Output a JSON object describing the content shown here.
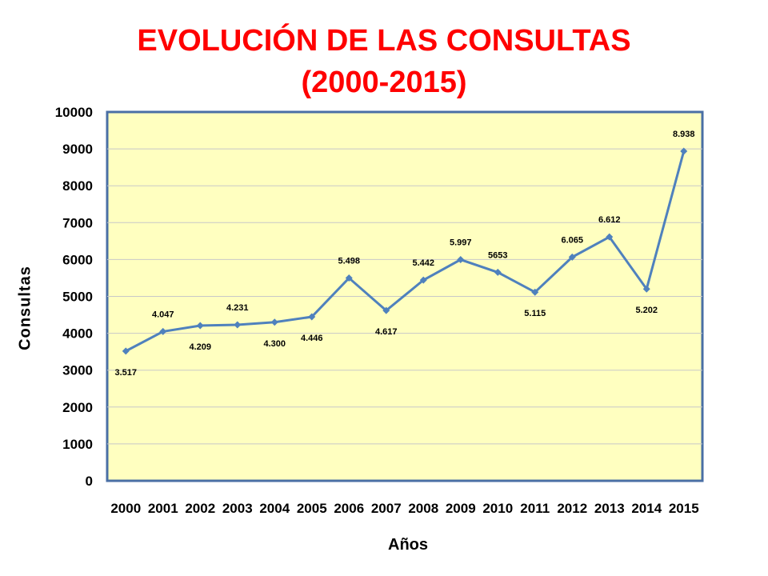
{
  "chart_data": {
    "type": "line",
    "title": "EVOLUCIÓN DE LAS CONSULTAS",
    "subtitle": "(2000-2015)",
    "xlabel": "Años",
    "ylabel": "Consultas",
    "ylim": [
      0,
      10000
    ],
    "y_ticks": [
      "0",
      "1000",
      "2000",
      "3000",
      "4000",
      "5000",
      "6000",
      "7000",
      "8000",
      "9000",
      "10000"
    ],
    "categories": [
      "2000",
      "2001",
      "2002",
      "2003",
      "2004",
      "2005",
      "2006",
      "2007",
      "2008",
      "2009",
      "2010",
      "2011",
      "2012",
      "2013",
      "2014",
      "2015"
    ],
    "series": [
      {
        "values": [
          3517,
          4047,
          4209,
          4231,
          4300,
          4446,
          5498,
          4617,
          5442,
          5997,
          5653,
          5115,
          6065,
          6612,
          5202,
          8938
        ],
        "labels": [
          "3.517",
          "4.047",
          "4.209",
          "4.231",
          "4.300",
          "4.446",
          "5.498",
          "4.617",
          "5.442",
          "5.997",
          "5653",
          "5.115",
          "6.065",
          "6.612",
          "5.202",
          "8.938"
        ],
        "label_positions": [
          "below",
          "above",
          "below",
          "above",
          "below",
          "below",
          "above",
          "below",
          "above",
          "above",
          "above",
          "below",
          "above",
          "above",
          "below",
          "above"
        ]
      }
    ],
    "grid": true,
    "colors": {
      "plot_background": "#ffffc0",
      "plot_border": "#4a6fa5",
      "line": "#4f81bd",
      "grid": "#c8c8c8",
      "title": "#ff0000"
    }
  }
}
